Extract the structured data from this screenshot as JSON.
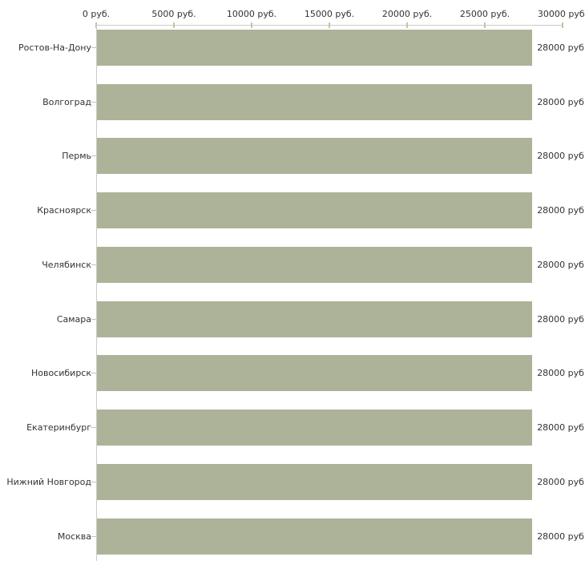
{
  "chart_data": {
    "type": "bar",
    "orientation": "horizontal",
    "title": "",
    "xlabel": "",
    "ylabel": "",
    "unit": "руб.",
    "categories": [
      "Ростов-На-Дону",
      "Волгоград",
      "Пермь",
      "Красноярск",
      "Челябинск",
      "Самара",
      "Новосибирск",
      "Екатеринбург",
      "Нижний Новгород",
      "Москва"
    ],
    "values": [
      28000,
      28000,
      28000,
      28000,
      28000,
      28000,
      28000,
      28000,
      28000,
      28000
    ],
    "value_labels": [
      "28000 руб.",
      "28000 руб.",
      "28000 руб.",
      "28000 руб.",
      "28000 руб.",
      "28000 руб.",
      "28000 руб.",
      "28000 руб.",
      "28000 руб.",
      "28000 руб."
    ],
    "x_axis": {
      "position": "top",
      "range": [
        0,
        30000
      ],
      "tick_values": [
        0,
        5000,
        10000,
        15000,
        20000,
        25000,
        30000
      ],
      "tick_labels": [
        "0 руб.",
        "5000 руб.",
        "10000 руб.",
        "15000 руб.",
        "20000 руб.",
        "25000 руб.",
        "30000 руб."
      ]
    },
    "legend": null,
    "grid": false,
    "colors": {
      "bar": "#adb398",
      "axis_line": "#cbcbcb",
      "tick": "#c2c4a2",
      "text": "#333333",
      "background": "#ffffff"
    }
  }
}
